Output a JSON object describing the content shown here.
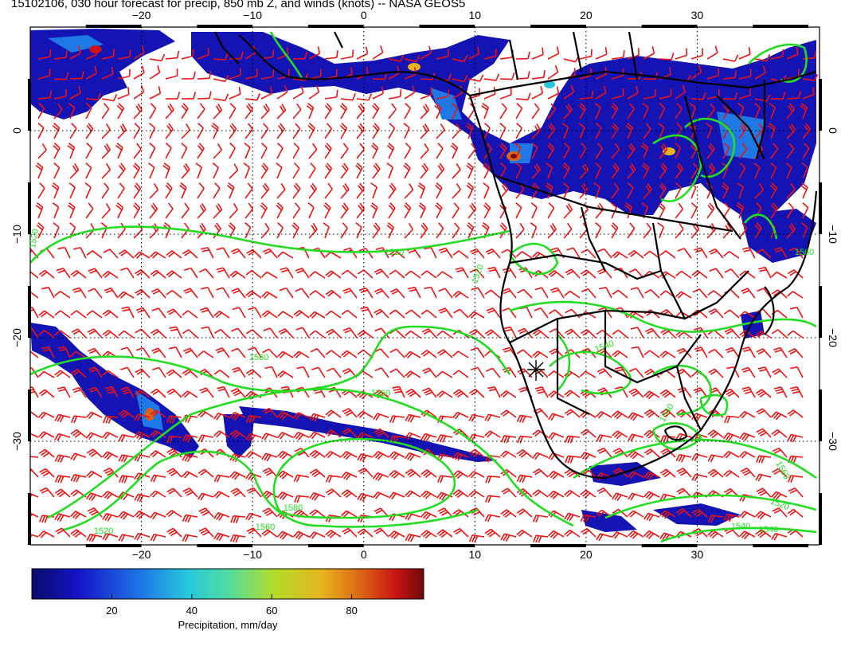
{
  "title": "15102106, 030 hour forecast for precip, 850 mb Z, and winds (knots) -- NASA GEOS5",
  "map": {
    "lon_range": [
      -30,
      41
    ],
    "lat_range": [
      -40,
      10
    ],
    "lon_ticks": [
      -20,
      -10,
      0,
      10,
      20,
      30
    ],
    "lat_ticks": [
      0,
      -10,
      -20,
      -30
    ],
    "lon_tick_labels": [
      "−20",
      "−10",
      "0",
      "10",
      "20",
      "30"
    ],
    "lat_tick_labels": [
      "0",
      "−10",
      "−20",
      "−30"
    ],
    "colors": {
      "contour": "#22dd22",
      "wind_barb": "#ee1111",
      "coast": "#000000"
    }
  },
  "contour_labels": [
    "1520",
    "1520",
    "1520",
    "1540",
    "1560",
    "1560",
    "1560",
    "1580",
    "1560",
    "1520",
    "1540",
    "1520",
    "1560",
    "1540",
    "1540"
  ],
  "colorbar": {
    "label": "Precipitation, mm/day",
    "ticks": [
      "20",
      "40",
      "60",
      "80"
    ],
    "tick_values": [
      20,
      40,
      60,
      80
    ],
    "range": [
      0,
      98
    ],
    "colors": [
      "#0b0b6b",
      "#1414c8",
      "#1e78e6",
      "#28c8dc",
      "#50dca0",
      "#b4dc28",
      "#e6b41e",
      "#dc6414",
      "#c81414",
      "#6e0a0a"
    ]
  }
}
